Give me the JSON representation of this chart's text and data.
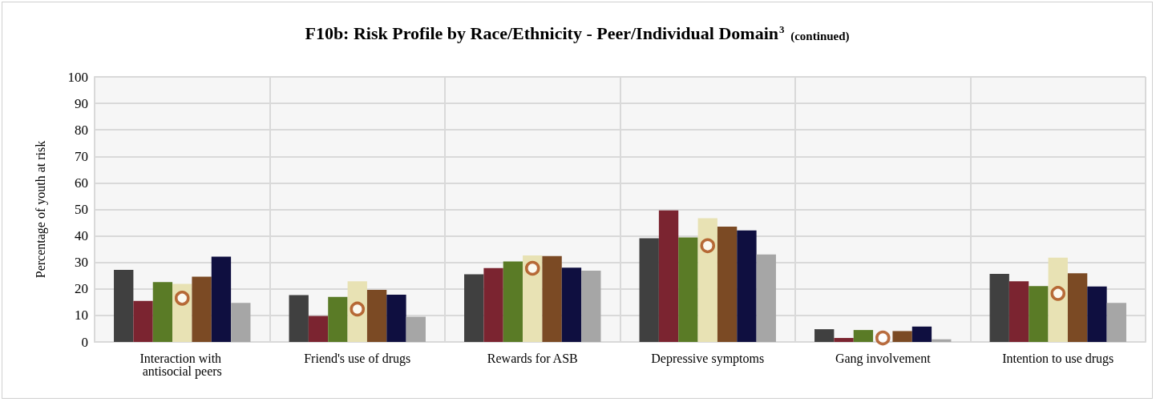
{
  "chart_data": {
    "type": "bar",
    "title": "F10b: Risk Profile by Race/Ethnicity - Peer/Individual Domain$^{3}$ (continued)",
    "ylabel": "Percentage of youth at risk",
    "categories": [
      "Interaction with antisocial peers",
      "Friend's use of drugs",
      "Rewards for ASB",
      "Depressive symptoms",
      "Gang involvement",
      "Intention to use drugs"
    ],
    "series": [
      {
        "color": "#404040",
        "values": [
          27.2,
          17.7,
          25.5,
          39.1,
          4.8,
          25.7
        ]
      },
      {
        "color": "#7b2430",
        "values": [
          15.5,
          9.8,
          27.9,
          49.6,
          1.5,
          22.9
        ]
      },
      {
        "color": "#5a7b26",
        "values": [
          22.6,
          17.0,
          30.4,
          39.4,
          4.5,
          21.1
        ]
      },
      {
        "color": "#e8e2b4",
        "values": [
          21.9,
          22.9,
          32.6,
          46.7,
          null,
          31.8
        ]
      },
      {
        "color": "#7b4a24",
        "values": [
          24.6,
          19.6,
          32.4,
          43.5,
          4.1,
          25.9
        ]
      },
      {
        "color": "#0f0f40",
        "values": [
          32.2,
          17.8,
          28.0,
          42.1,
          5.8,
          20.9
        ]
      },
      {
        "color": "#a6a6a6",
        "values": [
          14.7,
          9.5,
          26.9,
          33.0,
          1.0,
          14.7
        ]
      },
      {
        "type": "scatter",
        "marker": "circle",
        "color": "#a84810",
        "x": [
          "Interaction with antisocial peers",
          "Friend's use of drugs",
          "Rewards for ASB",
          "Depressive symptoms",
          "Gang involvement",
          "Intention to use drugs"
        ],
        "values": [
          16.5,
          12.4,
          27.8,
          36.3,
          1.5,
          18.3
        ]
      }
    ],
    "ylim": [
      0,
      100
    ],
    "yticks": [
      0,
      10,
      20,
      30,
      40,
      50,
      60,
      70,
      80,
      90,
      100
    ],
    "grid": true
  }
}
